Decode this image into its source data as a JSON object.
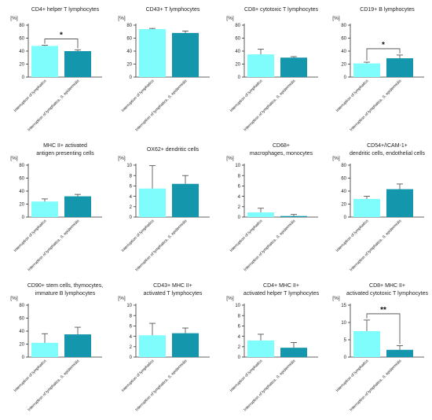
{
  "colors": {
    "light": "#7ffcfc",
    "dark": "#1497ad",
    "axis": "#333333"
  },
  "chart_data": [
    {
      "type": "bar",
      "title": [
        "CD4+ helper T lymphocytes"
      ],
      "ylabel": "[%]",
      "ylim": [
        0,
        80
      ],
      "yticks": [
        0,
        20,
        40,
        60,
        80
      ],
      "categories": [
        "Interruption of lymphatics",
        "Interruption of lymphatics, S. epidermidis"
      ],
      "values": [
        48,
        40
      ],
      "errors": [
        1,
        2
      ],
      "significance": "*"
    },
    {
      "type": "bar",
      "title": [
        "CD43+ T lymphocytes"
      ],
      "ylabel": "[%]",
      "ylim": [
        0,
        80
      ],
      "yticks": [
        0,
        20,
        40,
        60,
        80
      ],
      "categories": [
        "Interruption of lymphatics",
        "Interruption of lymphatics, S. epidermidis"
      ],
      "values": [
        74,
        68
      ],
      "errors": [
        1,
        3
      ],
      "significance": ""
    },
    {
      "type": "bar",
      "title": [
        "CD8+ cytotoxic T lymphocytes"
      ],
      "ylabel": "[%]",
      "ylim": [
        0,
        80
      ],
      "yticks": [
        0,
        20,
        40,
        60,
        80
      ],
      "categories": [
        "Interruption of lymphatics",
        "Interruption of lymphatics, S. epidermidis"
      ],
      "values": [
        35,
        30
      ],
      "errors": [
        8,
        1.5
      ],
      "significance": ""
    },
    {
      "type": "bar",
      "title": [
        "CD19+ B lymphocytes"
      ],
      "ylabel": "[%]",
      "ylim": [
        0,
        80
      ],
      "yticks": [
        0,
        20,
        40,
        60,
        80
      ],
      "categories": [
        "Interruption of lymphatics",
        "Interruption of lymphatics, S. epidermidis"
      ],
      "values": [
        21,
        29
      ],
      "errors": [
        2,
        5
      ],
      "significance": "*"
    },
    {
      "type": "bar",
      "title": [
        "MHC II+ activated",
        "antigen presenting cells"
      ],
      "ylabel": "[%]",
      "ylim": [
        0,
        80
      ],
      "yticks": [
        0,
        20,
        40,
        60,
        80
      ],
      "categories": [
        "Interruption of lymphatics",
        "Interruption of lymphatics, S. epidermidis"
      ],
      "values": [
        24,
        32
      ],
      "errors": [
        4,
        3
      ],
      "significance": ""
    },
    {
      "type": "bar",
      "title": [
        "OX62+ dendritic cells"
      ],
      "ylabel": "[%]",
      "ylim": [
        0,
        10
      ],
      "yticks": [
        0,
        2,
        4,
        6,
        8,
        10
      ],
      "categories": [
        "Interruption of lymphatics",
        "Interruption of lymphatics, S. epidermidis"
      ],
      "values": [
        5.5,
        6.4
      ],
      "errors": [
        4.4,
        1.6
      ],
      "significance": ""
    },
    {
      "type": "bar",
      "title": [
        "CD68+",
        "macrophages, monocytes"
      ],
      "ylabel": "[%]",
      "ylim": [
        0,
        10
      ],
      "yticks": [
        0,
        2,
        4,
        6,
        8,
        10
      ],
      "categories": [
        "Interruption of lymphatics",
        "Interruption of lymphatics, S. epidermidis"
      ],
      "values": [
        0.9,
        0.2
      ],
      "errors": [
        0.8,
        0.3
      ],
      "significance": ""
    },
    {
      "type": "bar",
      "title": [
        "CD54+/ICAM-1+",
        "dendritic cells, endothelial cells"
      ],
      "ylabel": "[%]",
      "ylim": [
        0,
        80
      ],
      "yticks": [
        0,
        20,
        40,
        60,
        80
      ],
      "categories": [
        "Interruption of lymphatics",
        "Interruption of lymphatics, S. epidermidis"
      ],
      "values": [
        28,
        43
      ],
      "errors": [
        4,
        8
      ],
      "significance": ""
    },
    {
      "type": "bar",
      "title": [
        "CD90+ stem cells,  thymocytes,",
        "immature B lymphocytes"
      ],
      "ylabel": "[%]",
      "ylim": [
        0,
        80
      ],
      "yticks": [
        0,
        20,
        40,
        60,
        80
      ],
      "categories": [
        "Interruption of lymphatics",
        "Interruption of lymphatics, S. epidermidis"
      ],
      "values": [
        22,
        35
      ],
      "errors": [
        14,
        11
      ],
      "significance": ""
    },
    {
      "type": "bar",
      "title": [
        "CD43+ MHC II+",
        "activated T lymphocytes"
      ],
      "ylabel": "[%]",
      "ylim": [
        0,
        10
      ],
      "yticks": [
        0,
        2,
        4,
        6,
        8,
        10
      ],
      "categories": [
        "Interruption of lymphatics",
        "Interruption of lymphatics, S. epidermidis"
      ],
      "values": [
        4.2,
        4.6
      ],
      "errors": [
        2.3,
        1.0
      ],
      "significance": ""
    },
    {
      "type": "bar",
      "title": [
        "CD4+ MHC II+",
        "activated helper T lymphocytes"
      ],
      "ylabel": "[%]",
      "ylim": [
        0,
        10
      ],
      "yticks": [
        0,
        2,
        4,
        6,
        8,
        10
      ],
      "categories": [
        "Interruption of lymphatics",
        "Interruption of lymphatics, S. epidermidis"
      ],
      "values": [
        3.2,
        1.8
      ],
      "errors": [
        1.2,
        1.0
      ],
      "significance": ""
    },
    {
      "type": "bar",
      "title": [
        "CD8+ MHC II+",
        "activated cytotoxic T lymphocytes"
      ],
      "ylabel": "[%]",
      "ylim": [
        0,
        15
      ],
      "yticks": [
        0,
        5,
        10,
        15
      ],
      "categories": [
        "Interruption of lymphatics",
        "Interruption of lymphatics, S. epidermidis"
      ],
      "values": [
        7.5,
        2.1
      ],
      "errors": [
        3.2,
        1.2
      ],
      "significance": "**"
    }
  ]
}
